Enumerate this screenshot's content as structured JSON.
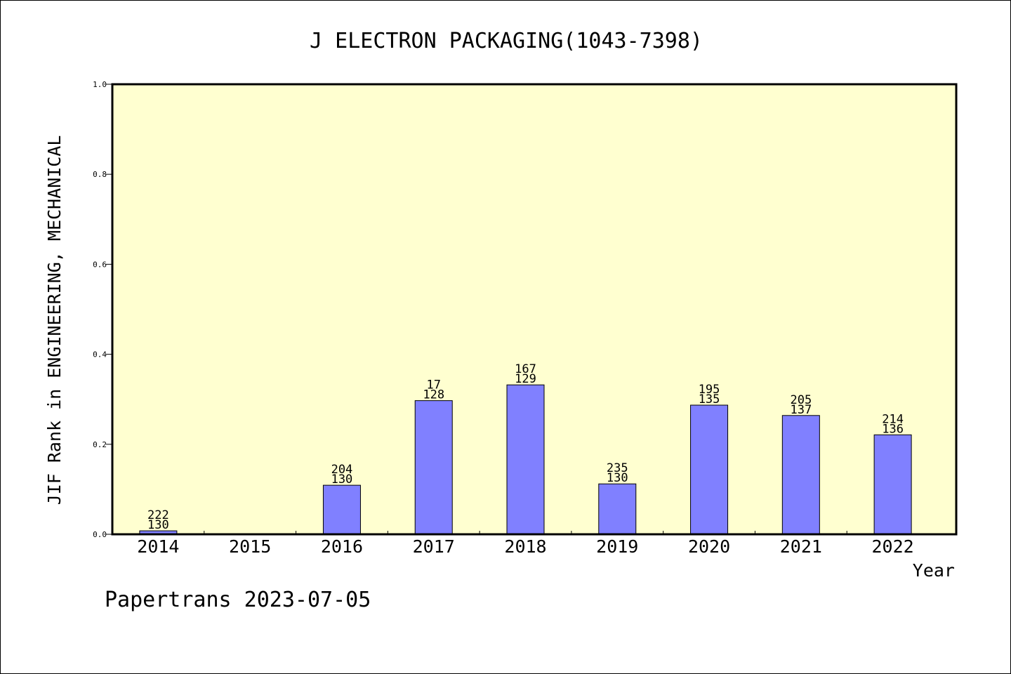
{
  "chart_data": {
    "type": "bar",
    "title": "J ELECTRON PACKAGING(1043-7398)",
    "xlabel": "Year",
    "ylabel": "JIF Rank in ENGINEERING, MECHANICAL",
    "ylim": [
      0,
      1.0
    ],
    "yticks": [
      "0.0",
      "0.2",
      "0.4",
      "0.6",
      "0.8",
      "1.0"
    ],
    "categories": [
      "2014",
      "2015",
      "2016",
      "2017",
      "2018",
      "2019",
      "2020",
      "2021",
      "2022"
    ],
    "values": [
      0.0077,
      0,
      0.109,
      0.297,
      0.332,
      0.112,
      0.287,
      0.264,
      0.221
    ],
    "labels_top": [
      "222",
      "",
      "204",
      "17",
      "167",
      "235",
      "195",
      "205",
      "214"
    ],
    "labels_bottom": [
      "130",
      "",
      "130",
      "128",
      "129",
      "130",
      "135",
      "137",
      "136"
    ],
    "grid": false,
    "colors": {
      "bar": "#8080ff",
      "plot_background": "#ffffd0",
      "axis": "#000000"
    }
  },
  "footer": "Papertrans 2023-07-05"
}
